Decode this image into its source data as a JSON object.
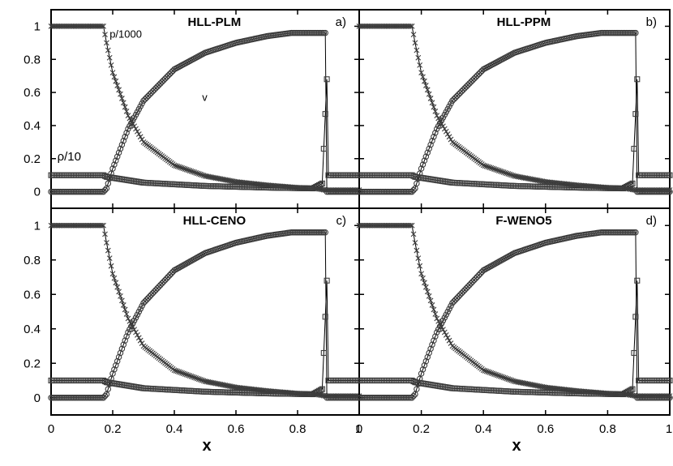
{
  "chart_data": {
    "type": "scatter",
    "xlabel": "x",
    "xlim": [
      0,
      1
    ],
    "ylim": [
      -0.1,
      1.1
    ],
    "grid": false,
    "x_tick_labels": [
      "0",
      "0.2",
      "0.4",
      "0.6",
      "0.8",
      "1"
    ],
    "y_tick_labels": [
      "0",
      "0.2",
      "0.4",
      "0.6",
      "0.8",
      "1"
    ],
    "line_color": "#000000",
    "marker_color": "#3c3c3c",
    "annotations": [
      {
        "panel": "a",
        "text": "p/1000",
        "x": 0.19,
        "y": 0.93
      },
      {
        "panel": "a",
        "text": "v",
        "x": 0.49,
        "y": 0.55
      },
      {
        "panel": "a",
        "text": "ρ/10",
        "x": 0.02,
        "y": 0.19
      }
    ],
    "series": [
      {
        "marker": "cross",
        "shape": "p_over_1000",
        "x": [
          0,
          0.17,
          0.18,
          0.2,
          0.25,
          0.3,
          0.4,
          0.5,
          0.6,
          0.7,
          0.8,
          0.86,
          0.89,
          1
        ],
        "y": [
          1,
          1,
          0.9,
          0.72,
          0.46,
          0.3,
          0.16,
          0.095,
          0.06,
          0.04,
          0.025,
          0.02,
          0.01,
          0.01
        ]
      },
      {
        "marker": "circle",
        "shape": "v",
        "x": [
          0,
          0.17,
          0.18,
          0.2,
          0.25,
          0.3,
          0.4,
          0.5,
          0.6,
          0.7,
          0.78,
          0.89,
          0.895,
          1
        ],
        "y": [
          0,
          0,
          0.02,
          0.14,
          0.38,
          0.55,
          0.74,
          0.84,
          0.9,
          0.94,
          0.96,
          0.96,
          0,
          0
        ]
      },
      {
        "marker": "square",
        "shape": "rho_over_10",
        "x": [
          0,
          0.17,
          0.18,
          0.3,
          0.5,
          0.7,
          0.85,
          0.88,
          0.895,
          0.9,
          1
        ],
        "y": [
          0.1,
          0.1,
          0.09,
          0.055,
          0.035,
          0.025,
          0.02,
          0.05,
          0.68,
          0.1,
          0.1
        ]
      }
    ],
    "panels": [
      {
        "id": "a",
        "title": "HLL-PLM",
        "label": "a)"
      },
      {
        "id": "b",
        "title": "HLL-PPM",
        "label": "b)"
      },
      {
        "id": "c",
        "title": "HLL-CENO",
        "label": "c)"
      },
      {
        "id": "d",
        "title": "F-WENO5",
        "label": "d)"
      }
    ]
  }
}
